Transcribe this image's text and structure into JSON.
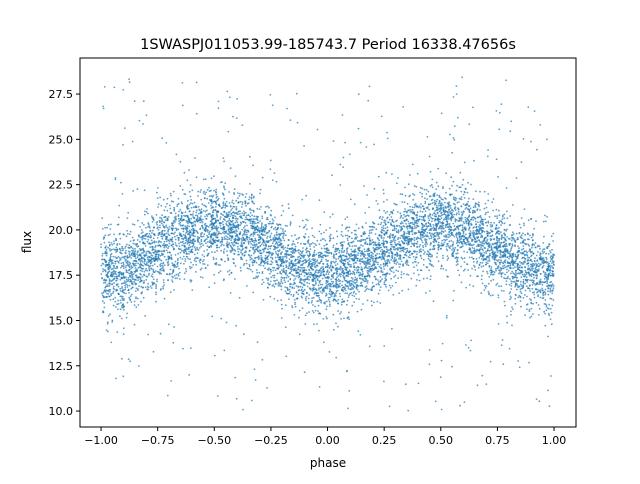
{
  "chart_data": {
    "type": "scatter",
    "title": "1SWASPJ011053.99-185743.7 Period 16338.47656s",
    "xlabel": "phase",
    "ylabel": "flux",
    "xlim": [
      -1.093,
      1.097
    ],
    "ylim": [
      9.12,
      29.49
    ],
    "xticks": [
      -1.0,
      -0.75,
      -0.5,
      -0.25,
      0.0,
      0.25,
      0.5,
      0.75,
      1.0
    ],
    "xtick_labels": [
      "−1.00",
      "−0.75",
      "−0.50",
      "−0.25",
      "0.00",
      "0.25",
      "0.50",
      "0.75",
      "1.00"
    ],
    "yticks": [
      10.0,
      12.5,
      15.0,
      17.5,
      20.0,
      22.5,
      25.0,
      27.5
    ],
    "ytick_labels": [
      "10.0",
      "12.5",
      "15.0",
      "17.5",
      "20.0",
      "22.5",
      "25.0",
      "27.5"
    ],
    "grid": false,
    "color": "#1f77b4",
    "trend": {
      "phase": [
        -1.0,
        -0.875,
        -0.75,
        -0.625,
        -0.5,
        -0.375,
        -0.25,
        -0.125,
        0.0,
        0.125,
        0.25,
        0.375,
        0.5,
        0.625,
        0.75,
        0.875,
        1.0
      ],
      "flux_mean": [
        17.5,
        17.91,
        18.9,
        19.89,
        20.3,
        19.89,
        18.9,
        17.91,
        17.5,
        17.91,
        18.9,
        19.89,
        20.3,
        19.89,
        18.9,
        17.91,
        17.5
      ],
      "flux_scatter": 1.1,
      "flux_range": [
        10.0,
        28.5
      ]
    }
  }
}
